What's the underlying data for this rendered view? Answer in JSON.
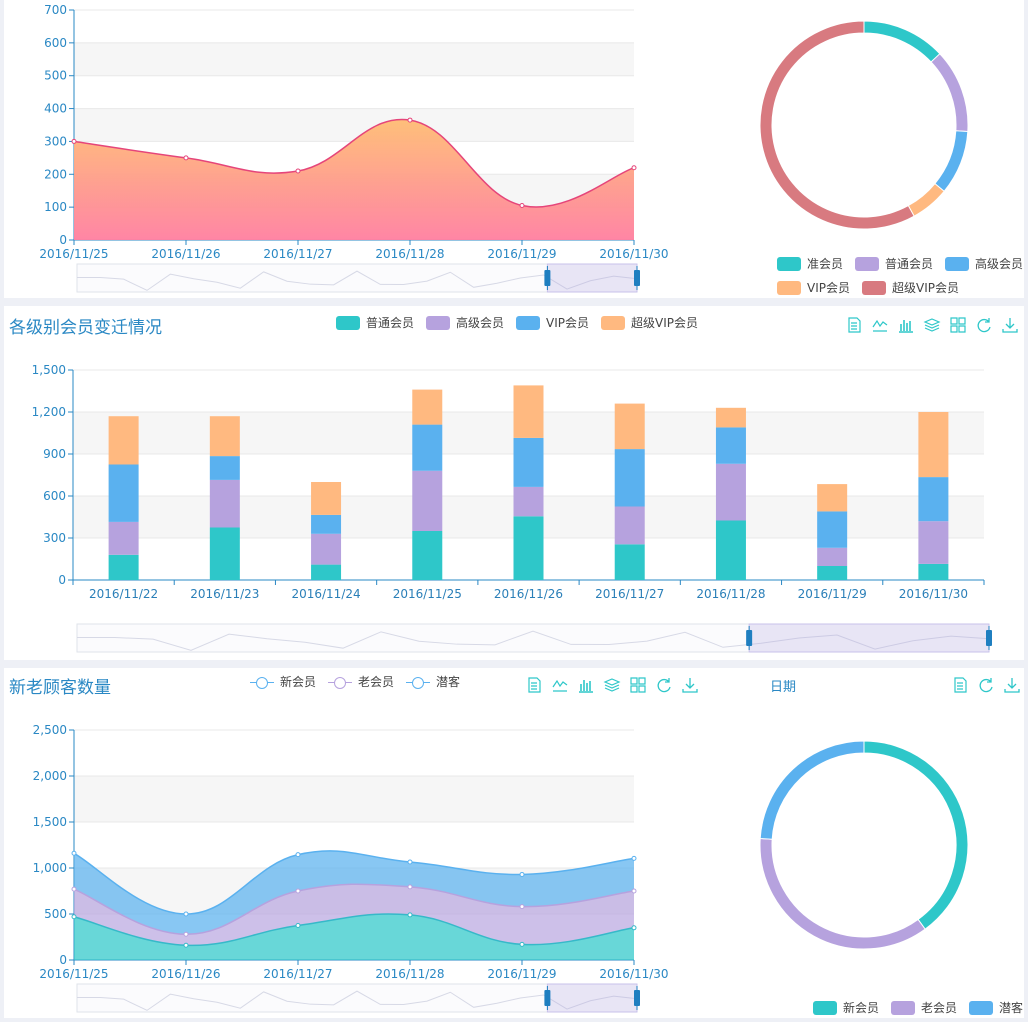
{
  "colors": {
    "teal": "#2ec7c9",
    "purple": "#b6a2de",
    "blue": "#5ab1ef",
    "orange": "#ffb980",
    "red": "#d87a80",
    "accent": "#2a88c4",
    "area_line": "#e5457a"
  },
  "toolbar_icons": [
    "data-view-icon",
    "line-icon",
    "bar-icon",
    "stack-icon",
    "tiled-icon",
    "restore-icon",
    "download-icon"
  ],
  "chart_data": [
    {
      "type": "area",
      "title": "",
      "x": [
        "2016/11/25",
        "2016/11/26",
        "2016/11/27",
        "2016/11/28",
        "2016/11/29",
        "2016/11/30"
      ],
      "series": [
        {
          "values": [
            300,
            250,
            210,
            365,
            105,
            220
          ]
        }
      ],
      "ylim": [
        0,
        700
      ],
      "yticks": [
        "0",
        "100",
        "200",
        "300",
        "400",
        "500",
        "600",
        "700"
      ],
      "grid": true,
      "datazoom": true
    },
    {
      "type": "pie",
      "title": "",
      "categories": [
        "准会员",
        "普通会员",
        "高级会员",
        "VIP会员",
        "超级VIP会员"
      ],
      "values": [
        13,
        13,
        10,
        6,
        58
      ],
      "donut": true,
      "legend_position": "bottom-right"
    },
    {
      "type": "bar",
      "stacked": true,
      "title": "各级别会员变迁情况",
      "categories": [
        "2016/11/22",
        "2016/11/23",
        "2016/11/24",
        "2016/11/25",
        "2016/11/26",
        "2016/11/27",
        "2016/11/28",
        "2016/11/29",
        "2016/11/30"
      ],
      "series": [
        {
          "name": "普通会员",
          "values": [
            180,
            375,
            110,
            350,
            455,
            255,
            425,
            100,
            115
          ]
        },
        {
          "name": "高级会员",
          "values": [
            235,
            340,
            220,
            430,
            210,
            270,
            405,
            130,
            305
          ]
        },
        {
          "name": "VIP会员",
          "values": [
            410,
            170,
            135,
            330,
            350,
            410,
            260,
            260,
            315
          ]
        },
        {
          "name": "超级VIP会员",
          "values": [
            345,
            285,
            235,
            250,
            375,
            325,
            140,
            195,
            465
          ]
        }
      ],
      "ylim": [
        0,
        1500
      ],
      "yticks": [
        "0",
        "300",
        "600",
        "900",
        "1,200",
        "1,500"
      ],
      "legend_position": "top",
      "datazoom": true
    },
    {
      "type": "area",
      "stacked": true,
      "title": "新老顾客数量",
      "x": [
        "2016/11/25",
        "2016/11/26",
        "2016/11/27",
        "2016/11/28",
        "2016/11/29",
        "2016/11/30"
      ],
      "series": [
        {
          "name": "新会员",
          "values": [
            470,
            160,
            375,
            490,
            170,
            350
          ]
        },
        {
          "name": "老会员",
          "values": [
            300,
            120,
            375,
            305,
            410,
            400
          ]
        },
        {
          "name": "潜客",
          "values": [
            390,
            220,
            395,
            270,
            350,
            355
          ]
        }
      ],
      "ylim": [
        0,
        2500
      ],
      "yticks": [
        "0",
        "500",
        "1,000",
        "1,500",
        "2,000",
        "2,500"
      ],
      "legend_position": "top",
      "datazoom": true
    },
    {
      "type": "pie",
      "title": "日期",
      "categories": [
        "新会员",
        "老会员",
        "潜客"
      ],
      "values": [
        40,
        36,
        24
      ],
      "donut": true,
      "legend_position": "bottom-right"
    }
  ]
}
